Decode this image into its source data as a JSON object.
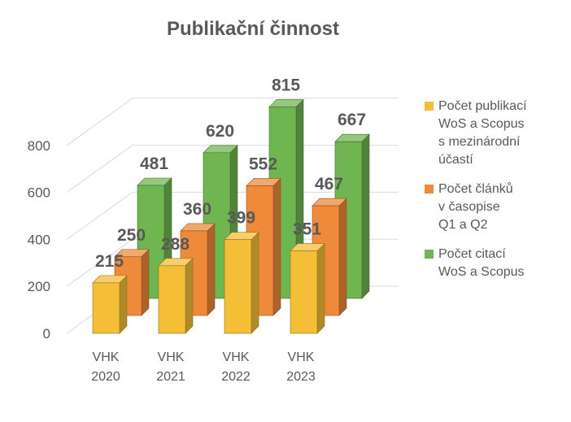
{
  "chart_data": {
    "type": "bar",
    "title": "Publikační činnost",
    "categories": [
      "VHK\n2020",
      "VHK\n2021",
      "VHK\n2022",
      "VHK\n2023"
    ],
    "ylim": [
      0,
      800
    ],
    "yticks": [
      0,
      200,
      400,
      600,
      800
    ],
    "grid": true,
    "legend_position": "right",
    "three_d": true,
    "series": [
      {
        "name": "Počet publikací\nWoS a Scopus\ns mezinárodní\núčastí",
        "values": [
          215,
          288,
          399,
          351
        ],
        "color": "#F4BE37"
      },
      {
        "name": "Počet článků\nv časopise\nQ1 a Q2",
        "values": [
          250,
          360,
          552,
          467
        ],
        "color": "#EE8A3A"
      },
      {
        "name": "Počet citací\nWoS a Scopus",
        "values": [
          481,
          620,
          815,
          667
        ],
        "color": "#70B650"
      }
    ]
  }
}
